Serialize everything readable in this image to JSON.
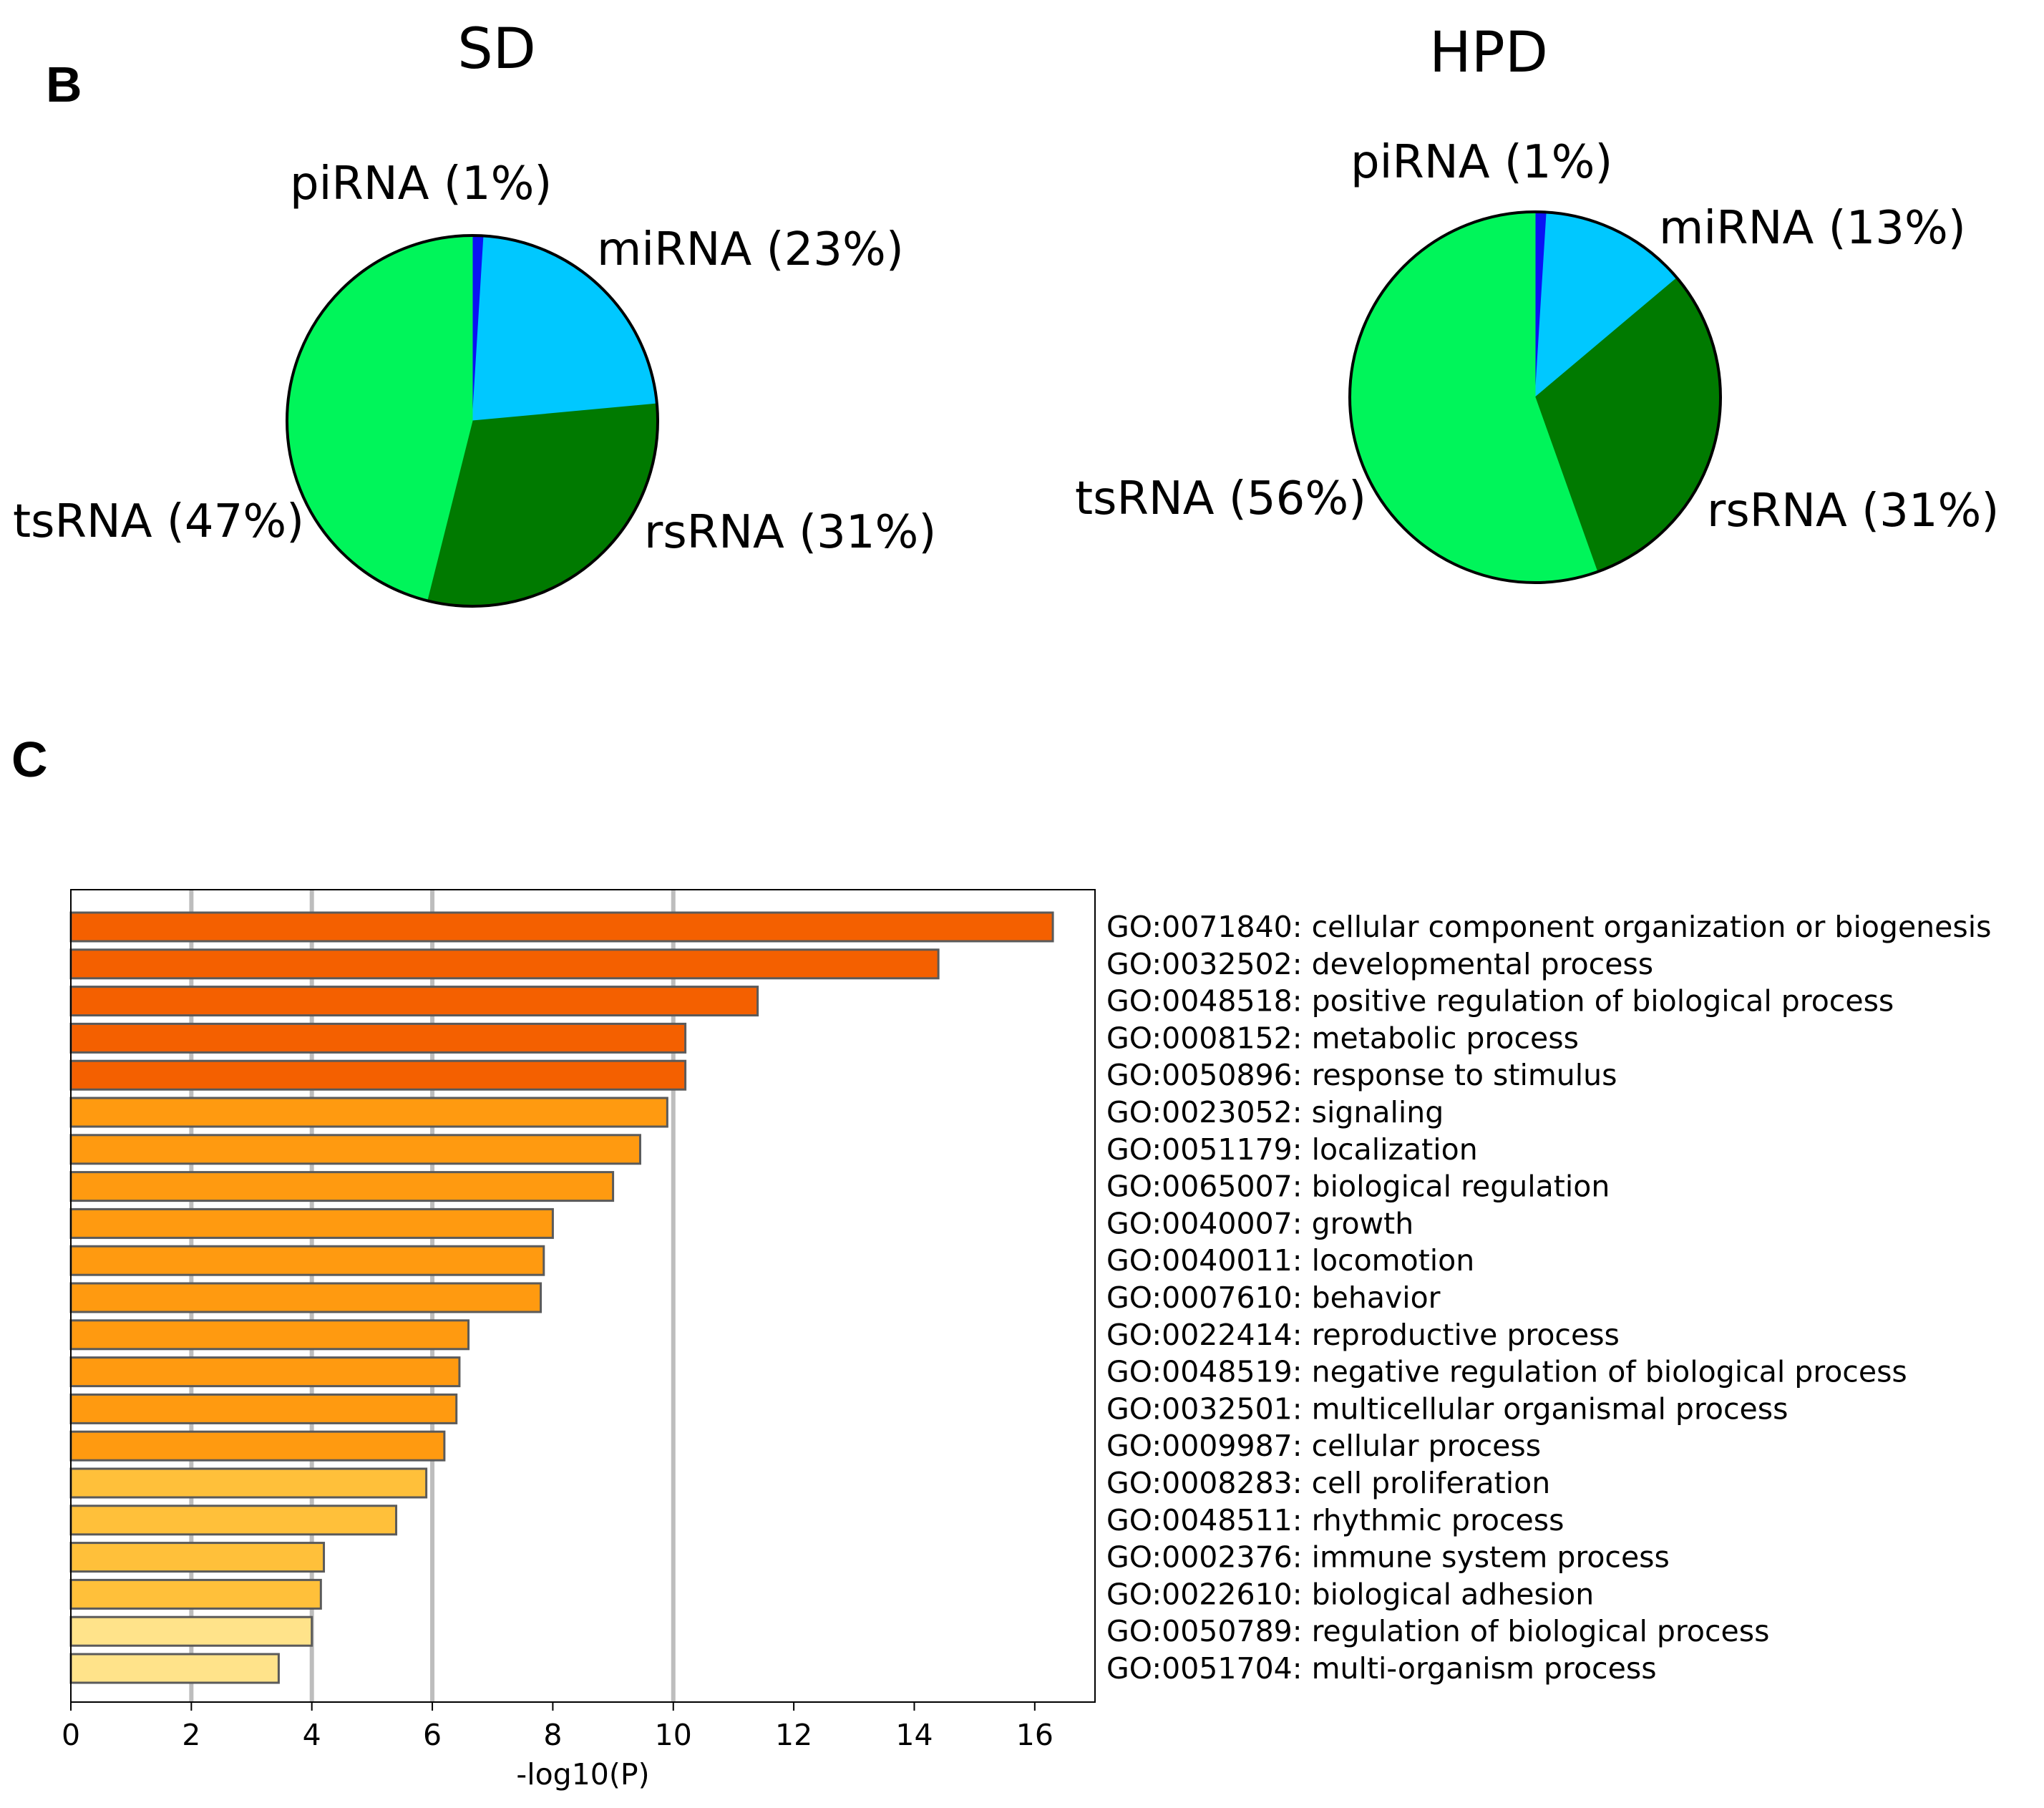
{
  "figure": {
    "panel_b_letter": "B",
    "panel_c_letter": "C"
  },
  "chart_data": [
    {
      "type": "pie",
      "title": "SD",
      "slices": [
        {
          "label": "piRNA (1%)",
          "value": 1,
          "color": "#0a12f5"
        },
        {
          "label": "miRNA (23%)",
          "value": 23,
          "color": "#00c8ff"
        },
        {
          "label": "rsRNA (31%)",
          "value": 31,
          "color": "#007a00"
        },
        {
          "label": "tsRNA (47%)",
          "value": 47,
          "color": "#00f55a"
        }
      ]
    },
    {
      "type": "pie",
      "title": "HPD",
      "slices": [
        {
          "label": "piRNA (1%)",
          "value": 1,
          "color": "#0a12f5"
        },
        {
          "label": "miRNA (13%)",
          "value": 13,
          "color": "#00c8ff"
        },
        {
          "label": "rsRNA (31%)",
          "value": 31,
          "color": "#007a00"
        },
        {
          "label": "tsRNA (56%)",
          "value": 56,
          "color": "#00f55a"
        }
      ]
    },
    {
      "type": "bar",
      "orientation": "horizontal",
      "xlabel": "-log10(P)",
      "xlim": [
        0,
        17
      ],
      "xticks": [
        "0",
        "2",
        "4",
        "6",
        "8",
        "10",
        "12",
        "14",
        "16"
      ],
      "gridlines_at": [
        2,
        4,
        6,
        10
      ],
      "categories": [
        "GO:0071840: cellular component organization or biogenesis",
        "GO:0032502: developmental process",
        "GO:0048518: positive regulation of biological process",
        "GO:0008152: metabolic process",
        "GO:0050896: response to stimulus",
        "GO:0023052: signaling",
        "GO:0051179: localization",
        "GO:0065007: biological regulation",
        "GO:0040007: growth",
        "GO:0040011: locomotion",
        "GO:0007610: behavior",
        "GO:0022414: reproductive process",
        "GO:0048519: negative regulation of biological process",
        "GO:0032501: multicellular organismal process",
        "GO:0009987: cellular process",
        "GO:0008283: cell proliferation",
        "GO:0048511: rhythmic process",
        "GO:0002376: immune system process",
        "GO:0022610: biological adhesion",
        "GO:0050789: regulation of biological process",
        "GO:0051704: multi-organism process"
      ],
      "values": [
        16.3,
        14.4,
        11.4,
        10.2,
        10.2,
        9.9,
        9.45,
        9.0,
        8.0,
        7.85,
        7.8,
        6.6,
        6.45,
        6.4,
        6.2,
        5.9,
        5.4,
        4.2,
        4.15,
        4.0,
        3.45
      ],
      "colors": [
        "#f46000",
        "#f46000",
        "#f46000",
        "#f46000",
        "#f46000",
        "#ff9a10",
        "#ff9a10",
        "#ff9a10",
        "#ff9a10",
        "#ff9a10",
        "#ff9a10",
        "#ff9a10",
        "#ff9a10",
        "#ff9a10",
        "#ff9a10",
        "#ffc03a",
        "#ffc03a",
        "#ffc03a",
        "#ffc03a",
        "#ffe38a",
        "#ffe38a"
      ]
    }
  ]
}
